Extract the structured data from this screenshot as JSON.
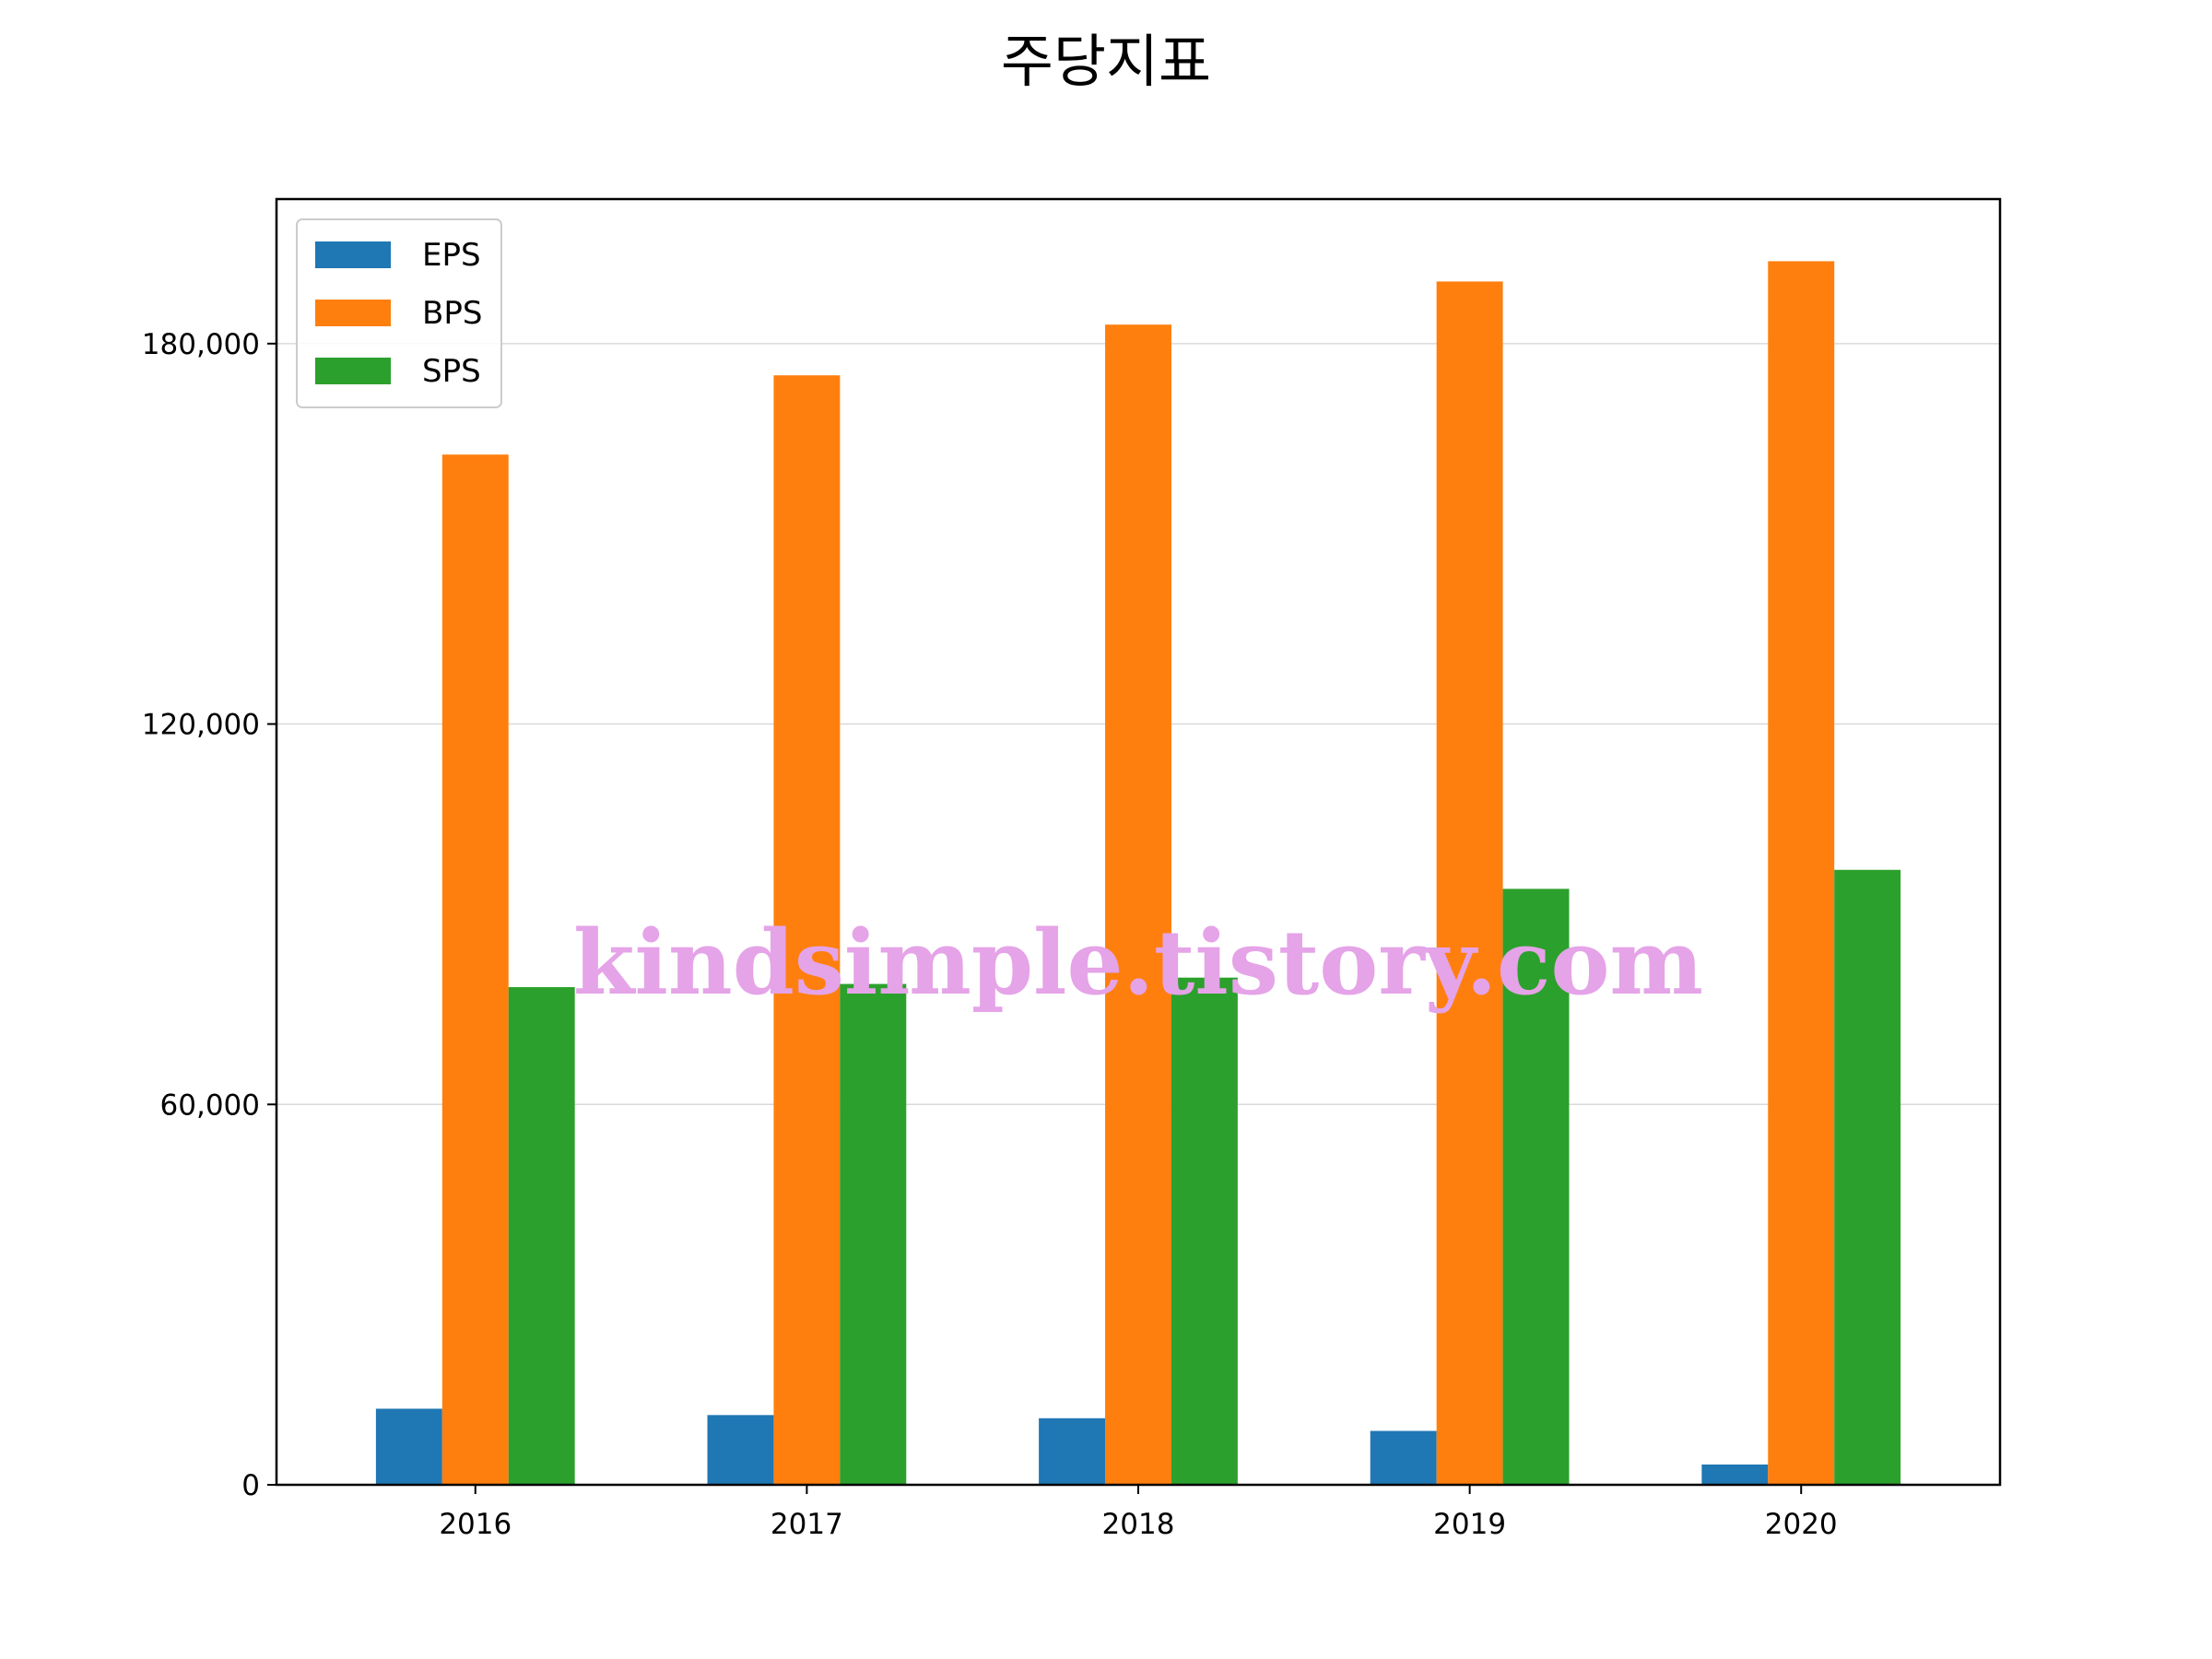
{
  "chart_data": {
    "type": "bar",
    "title": "주당지표",
    "xlabel": "",
    "ylabel": "",
    "categories": [
      "2016",
      "2017",
      "2018",
      "2019",
      "2020"
    ],
    "series": [
      {
        "name": "EPS",
        "color": "#1f77b4",
        "values": [
          12000,
          11000,
          10500,
          8500,
          3200
        ]
      },
      {
        "name": "BPS",
        "color": "#ff7f0e",
        "values": [
          162500,
          175000,
          183000,
          189800,
          193000
        ]
      },
      {
        "name": "SPS",
        "color": "#2ca02c",
        "values": [
          78500,
          79000,
          80000,
          94000,
          97000
        ]
      }
    ],
    "ylim": [
      0,
      202800
    ],
    "yticks": [
      0,
      60000,
      120000,
      180000
    ],
    "ytick_labels": [
      "0",
      "60,000",
      "120,000",
      "180,000"
    ],
    "grid": "y",
    "legend_position": "top-left"
  },
  "watermark": "kindsimple.tistory.com"
}
